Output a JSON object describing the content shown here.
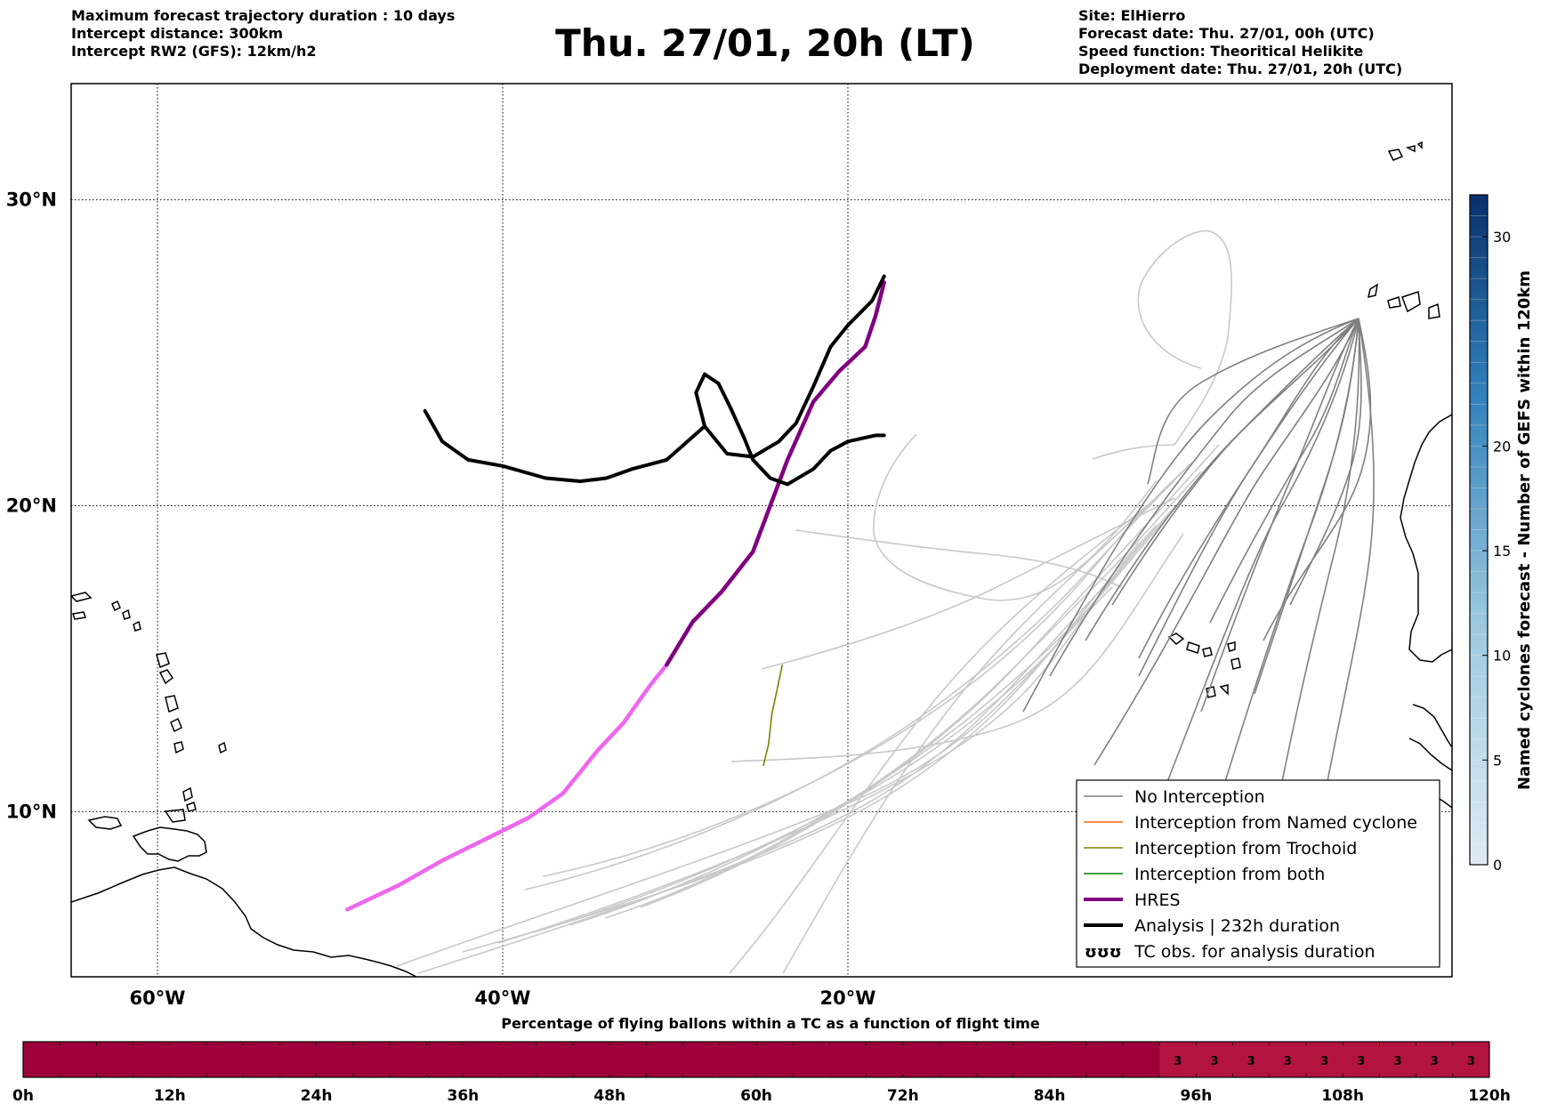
{
  "header": {
    "left_lines": [
      "Maximum forecast trajectory duration : 10 days",
      "Intercept distance: 300km",
      "Intercept RW2 (GFS):  12km/h2"
    ],
    "title": "Thu. 27/01, 20h (LT)",
    "right_lines": [
      "Site: ElHierro",
      "Forecast date: Thu. 27/01, 00h (UTC)",
      "Speed function: Theoritical Helikite",
      "Deployment date: Thu. 27/01, 20h (UTC)"
    ]
  },
  "colors": {
    "no_interception": "#808080",
    "no_interception_light": "#c8c8c8",
    "named_cyclone": "#ff6a00",
    "trochoid": "#808000",
    "both": "#008000",
    "hres": "#800080",
    "hres_light": "#ee66ee",
    "analysis": "#000000",
    "bar_main": "#9e003a",
    "bar_value": "#b3133f",
    "cbar_top": "#08306b",
    "cbar_bottom": "#deebf7"
  },
  "chart_data": [
    {
      "type": "line",
      "chart": "trajectory map",
      "x_unit": "longitude (°E, negative = W)",
      "y_unit": "latitude (°N)",
      "xlim": [
        -65,
        15
      ],
      "ylim": [
        4.6,
        33.8
      ],
      "x_ticks": [
        -60,
        -40,
        -20
      ],
      "x_tick_labels": [
        "60°W",
        "40°W",
        "20°W"
      ],
      "y_ticks": [
        10,
        20,
        30
      ],
      "y_tick_labels": [
        "10°N",
        "20°N",
        "30°N"
      ],
      "grid": true,
      "legend_position": "bottom-right",
      "legend": [
        {
          "label": "No Interception",
          "color": "#808080",
          "style": "thin"
        },
        {
          "label": "Interception from Named cyclone",
          "color": "#ff6a00",
          "style": "thin"
        },
        {
          "label": "Interception from Trochoid",
          "color": "#808000",
          "style": "thin"
        },
        {
          "label": "Interception from both",
          "color": "#008000",
          "style": "thin"
        },
        {
          "label": "HRES",
          "color": "#800080",
          "style": "thick"
        },
        {
          "label": "Analysis | 232h duration",
          "color": "#000000",
          "style": "thick"
        },
        {
          "label": "TC obs. for analysis duration",
          "color": "#000000",
          "style": "symbol"
        }
      ],
      "symbol_glyph": "ʊʊʊ",
      "series": [
        {
          "name": "HRES",
          "points": [
            [
              -17.9,
              27.3
            ],
            [
              -18.4,
              26.2
            ],
            [
              -19,
              25.2
            ],
            [
              -20.5,
              24.4
            ],
            [
              -22,
              23.4
            ],
            [
              -23.5,
              21.5
            ],
            [
              -25.5,
              18.5
            ],
            [
              -27.3,
              17.2
            ],
            [
              -29,
              16.2
            ],
            [
              -30.5,
              14.8
            ]
          ]
        },
        {
          "name": "HRES",
          "points": [
            [
              -30.5,
              14.8
            ],
            [
              -31.5,
              14.1
            ],
            [
              -33,
              12.9
            ],
            [
              -34.5,
              12
            ],
            [
              -36.5,
              10.6
            ],
            [
              -38.5,
              9.8
            ],
            [
              -41,
              9.1
            ],
            [
              -43.5,
              8.4
            ],
            [
              -46,
              7.6
            ],
            [
              -49,
              6.8
            ]
          ]
        },
        {
          "name": "Analysis | 232h duration",
          "points": [
            [
              -17.9,
              27.5
            ],
            [
              -18.6,
              26.7
            ],
            [
              -20,
              25.9
            ],
            [
              -21,
              25.2
            ],
            [
              -22,
              23.9
            ],
            [
              -23,
              22.7
            ],
            [
              -24,
              22.1
            ],
            [
              -25.5,
              21.6
            ],
            [
              -27,
              21.7
            ],
            [
              -28.3,
              22.6
            ],
            [
              -28.8,
              23.7
            ],
            [
              -28.3,
              24.3
            ],
            [
              -27.5,
              24
            ],
            [
              -26.8,
              23.2
            ],
            [
              -26,
              22.2
            ],
            [
              -25.5,
              21.5
            ],
            [
              -24.5,
              20.9
            ],
            [
              -23.5,
              20.7
            ],
            [
              -22,
              21.2
            ],
            [
              -21,
              21.8
            ],
            [
              -20,
              22.1
            ],
            [
              -19.2,
              22.2
            ],
            [
              -18.4,
              22.3
            ],
            [
              -17.9,
              22.3
            ]
          ]
        }
      ],
      "trochoid_points": [
        [
          -23.8,
          14.8
        ],
        [
          -24.1,
          14
        ],
        [
          -24.4,
          13.2
        ],
        [
          -24.6,
          12.2
        ],
        [
          -24.9,
          11.5
        ]
      ]
    },
    {
      "type": "heatmap",
      "chart": "colorbar",
      "label": "Named cyclones forecast - Number of GEFS within 120km",
      "range": [
        0,
        32
      ],
      "ticks": [
        0,
        5,
        10,
        15,
        20,
        30
      ]
    },
    {
      "type": "bar",
      "chart": "flight time strip",
      "title": "Percentage of flying ballons within a TC as a function of flight time",
      "xlim": [
        0,
        120
      ],
      "x_unit": "hours",
      "tick_labels": [
        "0h",
        "12h",
        "24h",
        "36h",
        "48h",
        "60h",
        "72h",
        "84h",
        "96h",
        "108h",
        "120h"
      ],
      "cell_hours": 3,
      "highlight_from_hour": 93,
      "values": [
        {
          "hour": 94.5,
          "value": 3
        },
        {
          "hour": 97.5,
          "value": 3
        },
        {
          "hour": 100.5,
          "value": 3
        },
        {
          "hour": 103.5,
          "value": 3
        },
        {
          "hour": 106.5,
          "value": 3
        },
        {
          "hour": 109.5,
          "value": 3
        },
        {
          "hour": 112.5,
          "value": 3
        },
        {
          "hour": 115.5,
          "value": 3
        },
        {
          "hour": 118.5,
          "value": 3
        }
      ]
    }
  ]
}
